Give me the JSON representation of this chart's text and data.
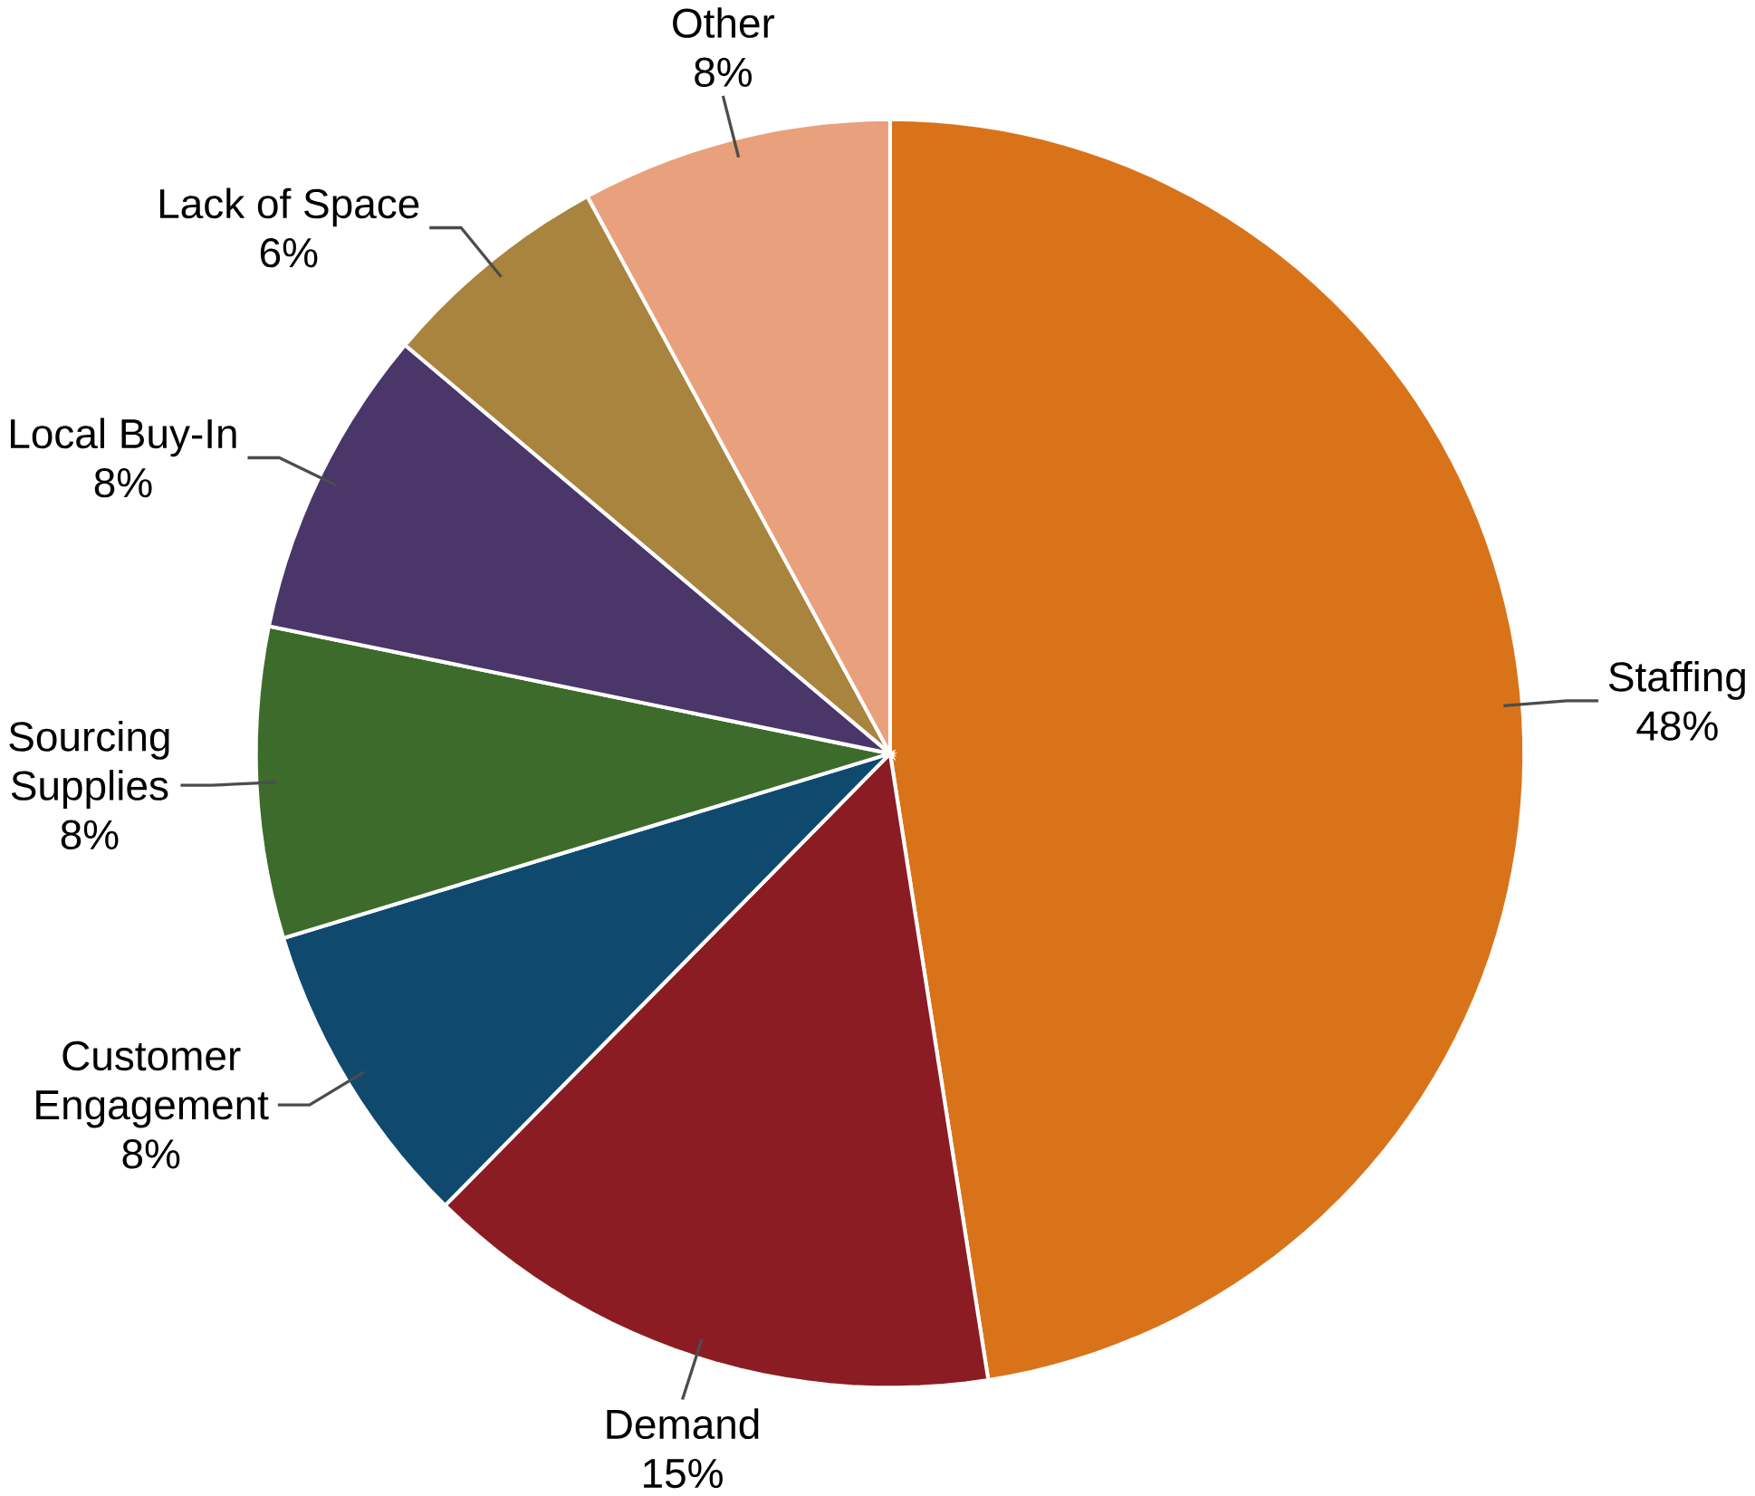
{
  "chart_data": {
    "type": "pie",
    "categories": [
      "Staffing",
      "Demand",
      "Customer Engagement",
      "Sourcing Supplies",
      "Local Buy-In",
      "Lack of Space",
      "Other"
    ],
    "values": [
      48,
      15,
      8,
      8,
      8,
      6,
      8
    ],
    "value_labels": [
      "48%",
      "15%",
      "8%",
      "8%",
      "8%",
      "6%",
      "8%"
    ],
    "colors": [
      "#d9731a",
      "#8c1c24",
      "#0f4a6e",
      "#3d6b2b",
      "#4a3668",
      "#a8843f",
      "#e9a07c"
    ]
  }
}
